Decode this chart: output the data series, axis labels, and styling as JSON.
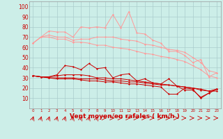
{
  "x": [
    0,
    1,
    2,
    3,
    4,
    5,
    6,
    7,
    8,
    9,
    10,
    11,
    12,
    13,
    14,
    15,
    16,
    17,
    18,
    19,
    20,
    21,
    22,
    23
  ],
  "background_color": "#cceee8",
  "grid_color": "#aacccc",
  "xlabel": "Vent moyen/en rafales ( km/h )",
  "xlabel_color": "#cc0000",
  "xlabel_fontsize": 6.5,
  "ylabel_ticks": [
    10,
    20,
    30,
    40,
    50,
    60,
    70,
    80,
    90,
    100
  ],
  "tick_color": "#cc0000",
  "tick_fontsize": 5.5,
  "line1_color": "#ff9999",
  "line1_y": [
    64,
    70,
    76,
    75,
    75,
    70,
    80,
    79,
    80,
    79,
    92,
    79,
    95,
    74,
    73,
    67,
    64,
    56,
    56,
    52,
    45,
    48,
    31,
    35
  ],
  "line2_color": "#ff9999",
  "line2_y": [
    64,
    70,
    72,
    70,
    70,
    67,
    68,
    68,
    70,
    70,
    70,
    68,
    67,
    66,
    63,
    62,
    60,
    58,
    57,
    55,
    50,
    45,
    37,
    35
  ],
  "line3_color": "#ff9999",
  "line3_y": [
    64,
    70,
    70,
    68,
    68,
    65,
    65,
    64,
    62,
    62,
    60,
    59,
    58,
    56,
    54,
    53,
    51,
    50,
    48,
    46,
    42,
    38,
    32,
    30
  ],
  "line4_color": "#cc0000",
  "line4_y": [
    32,
    31,
    31,
    33,
    42,
    41,
    38,
    44,
    39,
    40,
    30,
    33,
    34,
    27,
    29,
    25,
    24,
    29,
    22,
    18,
    18,
    11,
    15,
    19
  ],
  "line5_color": "#cc0000",
  "line5_y": [
    32,
    31,
    31,
    32,
    33,
    33,
    33,
    32,
    30,
    30,
    29,
    29,
    28,
    27,
    26,
    25,
    24,
    23,
    22,
    21,
    20,
    18,
    17,
    19
  ],
  "line6_color": "#cc0000",
  "line6_y": [
    32,
    31,
    30,
    30,
    30,
    30,
    29,
    29,
    29,
    28,
    27,
    27,
    26,
    26,
    25,
    24,
    23,
    23,
    22,
    21,
    20,
    19,
    17,
    17
  ],
  "line7_color": "#cc0000",
  "line7_y": [
    32,
    31,
    30,
    29,
    29,
    29,
    28,
    27,
    27,
    26,
    26,
    25,
    24,
    24,
    23,
    22,
    21,
    14,
    14,
    20,
    19,
    10,
    15,
    19
  ],
  "arrow_color": "#cc0000",
  "ylim": [
    0,
    105
  ],
  "xlim": [
    -0.5,
    23.5
  ],
  "diagonal_arrows": [
    0,
    1,
    2,
    3,
    4,
    5,
    6,
    7,
    8
  ],
  "horizontal_arrows": [
    9,
    10,
    11,
    12,
    13,
    14,
    15,
    16,
    17,
    18,
    19,
    20,
    21,
    22,
    23
  ]
}
